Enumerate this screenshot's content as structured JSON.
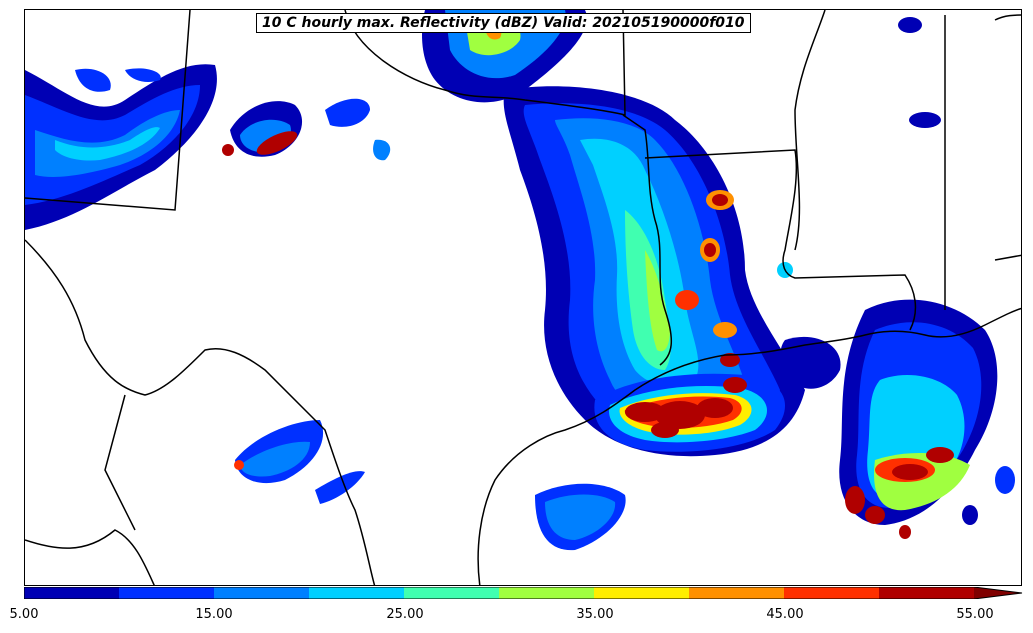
{
  "title": "10 C hourly max. Reflectivity (dBZ) Valid: 202105190000f010",
  "colorbar": {
    "tick_labels": [
      "5.00",
      "15.00",
      "25.00",
      "35.00",
      "45.00",
      "55.00"
    ],
    "bins": [
      {
        "from": 5,
        "to": 10,
        "color": "#0000b4"
      },
      {
        "from": 10,
        "to": 15,
        "color": "#0030ff"
      },
      {
        "from": 15,
        "to": 20,
        "color": "#0080ff"
      },
      {
        "from": 20,
        "to": 25,
        "color": "#00d0ff"
      },
      {
        "from": 25,
        "to": 30,
        "color": "#40ffb0"
      },
      {
        "from": 30,
        "to": 35,
        "color": "#a0ff40"
      },
      {
        "from": 35,
        "to": 40,
        "color": "#ffee00"
      },
      {
        "from": 40,
        "to": 45,
        "color": "#ff9000"
      },
      {
        "from": 45,
        "to": 50,
        "color": "#ff3000"
      },
      {
        "from": 50,
        "to": 55,
        "color": "#b00000"
      }
    ],
    "extend_color": "#800000"
  }
}
